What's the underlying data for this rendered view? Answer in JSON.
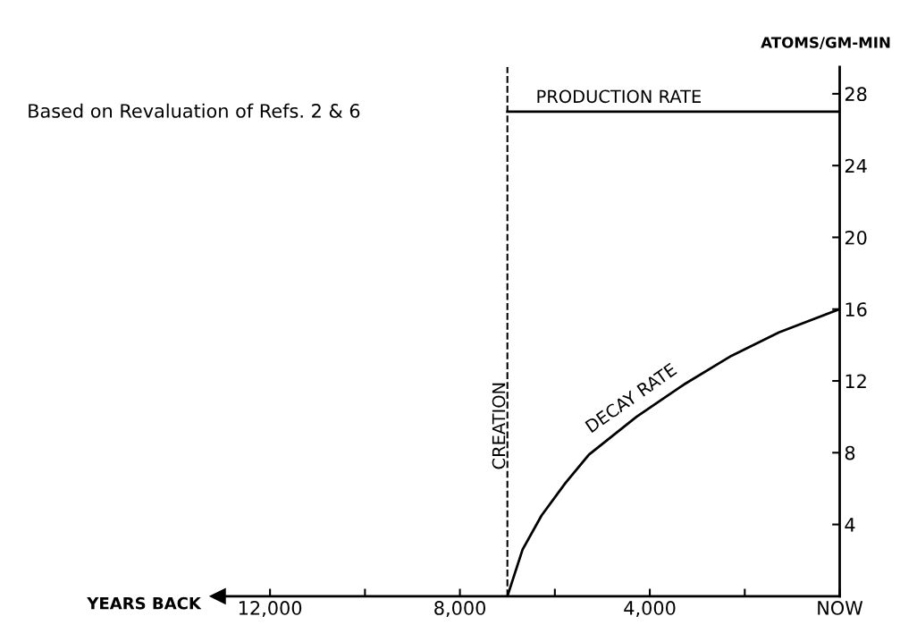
{
  "chart_data": {
    "type": "line",
    "title": "Based on Revaluation of Refs. 2 & 6",
    "xlabel": "YEARS BACK",
    "ylabel": "ATOMS/GM-MIN",
    "xlim": [
      13100,
      0
    ],
    "xticks": [
      {
        "value": 12000,
        "label": "12,000"
      },
      {
        "value": 10000,
        "label": null
      },
      {
        "value": 8000,
        "label": "8,000"
      },
      {
        "value": 6000,
        "label": null
      },
      {
        "value": 4000,
        "label": "4,000"
      },
      {
        "value": 2000,
        "label": null
      },
      {
        "value": 0,
        "label": "NOW"
      }
    ],
    "ylim": [
      0,
      29.5
    ],
    "yticks": [
      4,
      8,
      12,
      16,
      20,
      24,
      28
    ],
    "series": [
      {
        "name": "PRODUCTION RATE",
        "color": "#000000",
        "x": [
          7000,
          0
        ],
        "values": [
          27,
          27
        ]
      },
      {
        "name": "DECAY RATE",
        "color": "#000000",
        "x": [
          7000,
          6680,
          6280,
          5780,
          5280,
          4280,
          3280,
          2280,
          1280,
          0
        ],
        "values": [
          0,
          2.6,
          4.5,
          6.3,
          7.9,
          10.0,
          11.8,
          13.4,
          14.7,
          16.0
        ]
      }
    ],
    "ref_lines": [
      {
        "axis": "x",
        "value": 7000,
        "label": "CREATION",
        "color": "#000000",
        "line_style": "dashed"
      }
    ],
    "grid": false,
    "legend": false,
    "line_style": "solid",
    "marker": "none"
  }
}
